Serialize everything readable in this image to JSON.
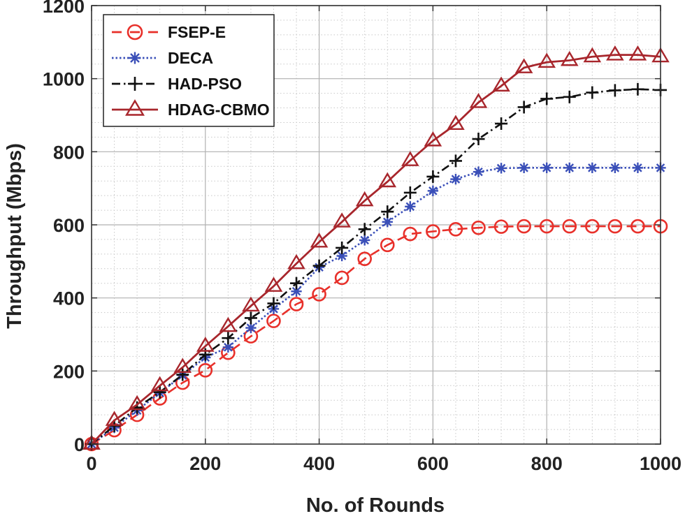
{
  "chart_data": {
    "type": "line",
    "title": "",
    "xlabel": "No. of Rounds",
    "ylabel": "Throughput (Mbps)",
    "xlim": [
      0,
      1000
    ],
    "ylim": [
      0,
      1200
    ],
    "x_ticks": [
      0,
      200,
      400,
      600,
      800,
      1000
    ],
    "y_ticks": [
      0,
      200,
      400,
      600,
      800,
      1000,
      1200
    ],
    "x_tick_labels": [
      "0",
      "200",
      "400",
      "600",
      "800",
      "1000"
    ],
    "y_tick_labels": [
      "0",
      "200",
      "400",
      "600",
      "800",
      "1000",
      "1200"
    ],
    "grid": true,
    "legend_position": "top-left",
    "x": [
      0,
      40,
      80,
      120,
      160,
      200,
      240,
      280,
      320,
      360,
      400,
      440,
      480,
      520,
      560,
      600,
      640,
      680,
      720,
      760,
      800,
      840,
      880,
      920,
      960,
      1000
    ],
    "series": [
      {
        "name": "FSEP-E",
        "color": "#e8302a",
        "dash": "dashed",
        "marker": "circle",
        "values": [
          0,
          38,
          80,
          125,
          168,
          202,
          250,
          295,
          337,
          383,
          410,
          455,
          507,
          545,
          575,
          582,
          588,
          592,
          595,
          596,
          596,
          596,
          596,
          596,
          596,
          596
        ]
      },
      {
        "name": "DECA",
        "color": "#3a4fb8",
        "dash": "dotted",
        "marker": "asterisk",
        "values": [
          0,
          45,
          92,
          140,
          188,
          237,
          265,
          318,
          370,
          418,
          484,
          515,
          558,
          608,
          650,
          693,
          725,
          745,
          755,
          756,
          756,
          756,
          756,
          756,
          756,
          756
        ]
      },
      {
        "name": "HAD-PSO",
        "color": "#111111",
        "dash": "dashdot",
        "marker": "plus",
        "values": [
          0,
          50,
          100,
          142,
          190,
          245,
          290,
          345,
          385,
          440,
          488,
          537,
          588,
          636,
          688,
          732,
          775,
          835,
          877,
          922,
          945,
          950,
          962,
          968,
          971,
          969
        ]
      },
      {
        "name": "HDAG-CBMO",
        "color": "#a8262c",
        "dash": "solid",
        "marker": "triangle",
        "values": [
          0,
          65,
          108,
          160,
          210,
          268,
          322,
          378,
          432,
          494,
          553,
          608,
          666,
          718,
          776,
          830,
          875,
          935,
          980,
          1030,
          1045,
          1050,
          1060,
          1065,
          1065,
          1060
        ]
      }
    ]
  }
}
